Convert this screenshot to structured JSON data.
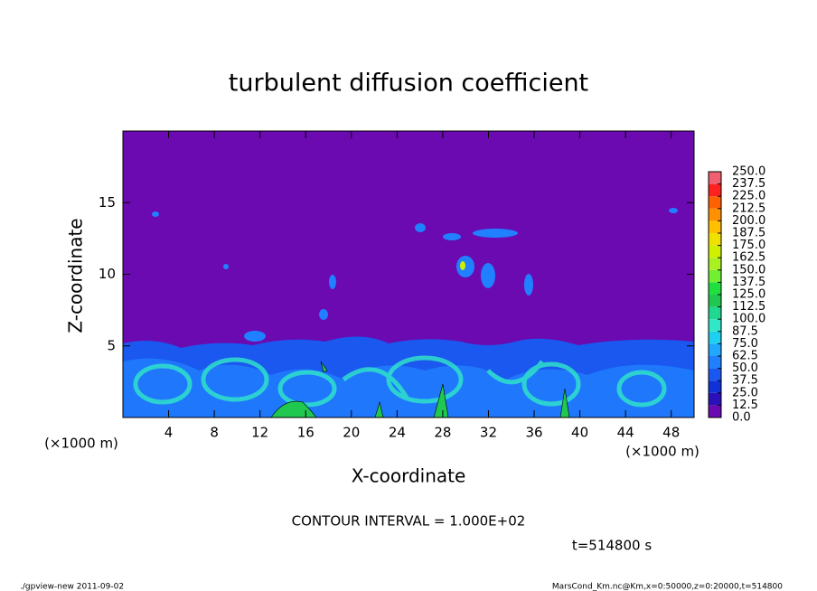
{
  "chart_data": {
    "type": "contour",
    "title": "turbulent diffusion coefficient",
    "xlabel": "X-coordinate",
    "ylabel": "Z-coordinate",
    "x_unit_label": "(×1000 m)",
    "y_unit_label": "(×1000 m)",
    "xlim": [
      0,
      50
    ],
    "ylim": [
      0,
      20
    ],
    "xticks": [
      4,
      8,
      12,
      16,
      20,
      24,
      28,
      32,
      36,
      40,
      44,
      48
    ],
    "yticks": [
      5,
      10,
      15
    ],
    "colorbar": {
      "levels": [
        {
          "value": 0,
          "label": "0.0"
        },
        {
          "value": 12.5,
          "label": "12.5"
        },
        {
          "value": 25,
          "label": "25.0"
        },
        {
          "value": 37.5,
          "label": "37.5"
        },
        {
          "value": 50,
          "label": "50.0"
        },
        {
          "value": 62.5,
          "label": "62.5"
        },
        {
          "value": 75,
          "label": "75.0"
        },
        {
          "value": 87.5,
          "label": "87.5"
        },
        {
          "value": 100,
          "label": "100.0"
        },
        {
          "value": 112.5,
          "label": "112.5"
        },
        {
          "value": 125,
          "label": "125.0"
        },
        {
          "value": 137.5,
          "label": "137.5"
        },
        {
          "value": 150,
          "label": "150.0"
        },
        {
          "value": 162.5,
          "label": "162.5"
        },
        {
          "value": 175,
          "label": "175.0"
        },
        {
          "value": 187.5,
          "label": "187.5"
        },
        {
          "value": 200,
          "label": "200.0"
        },
        {
          "value": 212.5,
          "label": "212.5"
        },
        {
          "value": 225,
          "label": "225.0"
        },
        {
          "value": 237.5,
          "label": "237.5"
        },
        {
          "value": 250,
          "label": "250.0"
        }
      ],
      "colors": [
        "#6a0ab0",
        "#2a10b8",
        "#1030d8",
        "#1a58f0",
        "#2080ff",
        "#20a8ff",
        "#20d0f0",
        "#30e8c8",
        "#20d890",
        "#20c850",
        "#20e040",
        "#70f030",
        "#a8f020",
        "#d0f000",
        "#f0e000",
        "#ffc000",
        "#ff9000",
        "#ff6000",
        "#ff2020",
        "#f06070"
      ]
    },
    "contour_interval": "CONTOUR INTERVAL = 1.000E+02",
    "time_label": "t=514800 s",
    "footer_left": "./gpview-new  2011-09-02",
    "footer_right": "MarsCond_Km.nc@Km,x=0:50000,z=0:20000,t=514800"
  }
}
